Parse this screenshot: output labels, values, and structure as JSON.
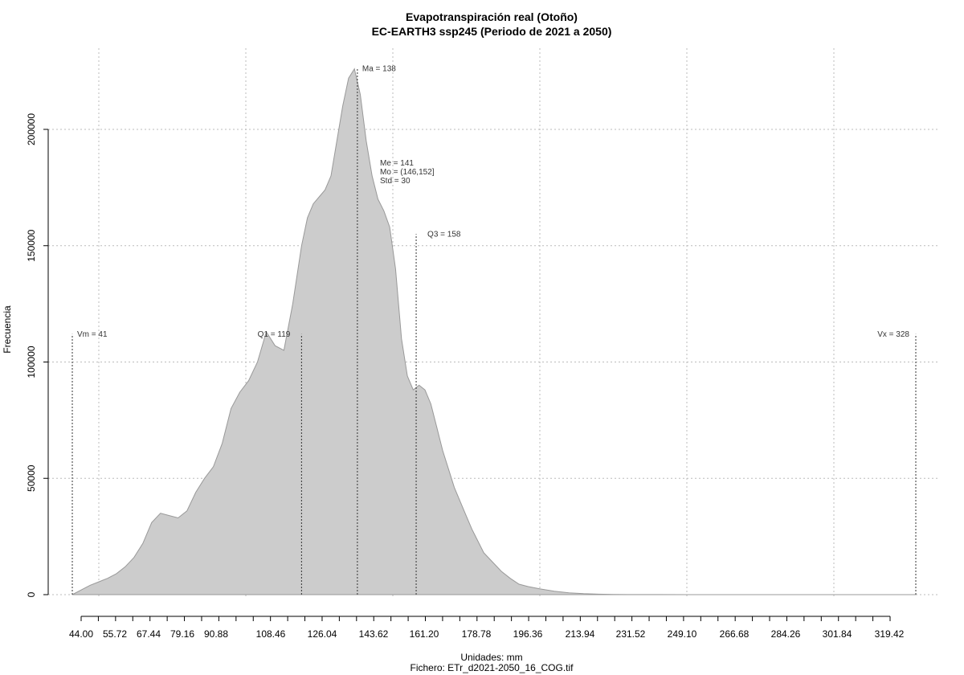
{
  "chart_data": {
    "type": "area",
    "title": "Evapotranspiración real (Otoño)",
    "subtitle": "EC-EARTH3 ssp245 (Periodo de 2021 a 2050)",
    "xlabel": "Unidades: mm",
    "ylabel": "Frecuencia",
    "footer": "Fichero: ETr_d2021-2050_16_COG.tif",
    "xlim": [
      35,
      335
    ],
    "ylim": [
      0,
      230000
    ],
    "x_ticks": [
      "44.00",
      "55.72",
      "67.44",
      "79.16",
      "90.88",
      "108.46",
      "126.04",
      "143.62",
      "161.20",
      "178.78",
      "196.36",
      "213.94",
      "231.52",
      "249.10",
      "266.68",
      "284.26",
      "301.84",
      "319.42"
    ],
    "x_tick_values": [
      44.0,
      55.72,
      67.44,
      79.16,
      90.88,
      108.46,
      126.04,
      143.62,
      161.2,
      178.78,
      196.36,
      213.94,
      231.52,
      249.1,
      266.68,
      284.26,
      301.84,
      319.42
    ],
    "y_ticks": [
      "0",
      "50000",
      "100000",
      "150000",
      "200000"
    ],
    "y_tick_values": [
      0,
      50000,
      100000,
      150000,
      200000
    ],
    "grid_x": [
      44,
      93,
      143,
      192,
      242,
      292
    ],
    "grid": true,
    "fill_color": "#cccccc",
    "line_color": "#999999",
    "series": [
      {
        "x": [
          41,
          44,
          47,
          50,
          53,
          56,
          59,
          62,
          65,
          68,
          71,
          74,
          77,
          80,
          83,
          86,
          89,
          92,
          95,
          98,
          101,
          104,
          107,
          110,
          113,
          116,
          119,
          121,
          123,
          125,
          127,
          129,
          131,
          133,
          135,
          137,
          139,
          141,
          143,
          145,
          147,
          149,
          151,
          153,
          155,
          157,
          159,
          161,
          163,
          165,
          167,
          169,
          171,
          173,
          175,
          177,
          179,
          181,
          184,
          187,
          190,
          193,
          196,
          200,
          205,
          210,
          215,
          220,
          225,
          230,
          240,
          250,
          260,
          280,
          300,
          328
        ],
        "y": [
          0,
          2000,
          4000,
          5500,
          7000,
          9000,
          12000,
          16000,
          22000,
          31000,
          35000,
          34000,
          33000,
          36000,
          44000,
          50000,
          55000,
          65000,
          80000,
          87000,
          92000,
          100000,
          113000,
          107000,
          105000,
          125000,
          150000,
          162000,
          168000,
          171000,
          174000,
          180000,
          195000,
          210000,
          222000,
          226000,
          215000,
          195000,
          180000,
          170000,
          165000,
          158000,
          140000,
          110000,
          94000,
          88000,
          90000,
          88000,
          82000,
          72000,
          62000,
          54000,
          46000,
          40000,
          34000,
          28000,
          23000,
          18000,
          14000,
          10000,
          7000,
          4500,
          3500,
          2500,
          1500,
          800,
          400,
          200,
          100,
          50,
          20,
          10,
          5,
          2,
          1,
          0
        ]
      }
    ],
    "annotations": [
      {
        "label": "Vm = 41",
        "x": 41,
        "y": 112000
      },
      {
        "label": "Q1 = 119",
        "x": 119,
        "y": 112000
      },
      {
        "label": "Ma = 138",
        "x": 138,
        "y": 226000
      },
      {
        "label": "Q3 = 158",
        "x": 158,
        "y": 155000
      },
      {
        "label": "Vx = 328",
        "x": 328,
        "y": 112000
      }
    ],
    "stats": [
      "Me = 141",
      "Mo = (146,152]",
      "Std = 30"
    ]
  }
}
